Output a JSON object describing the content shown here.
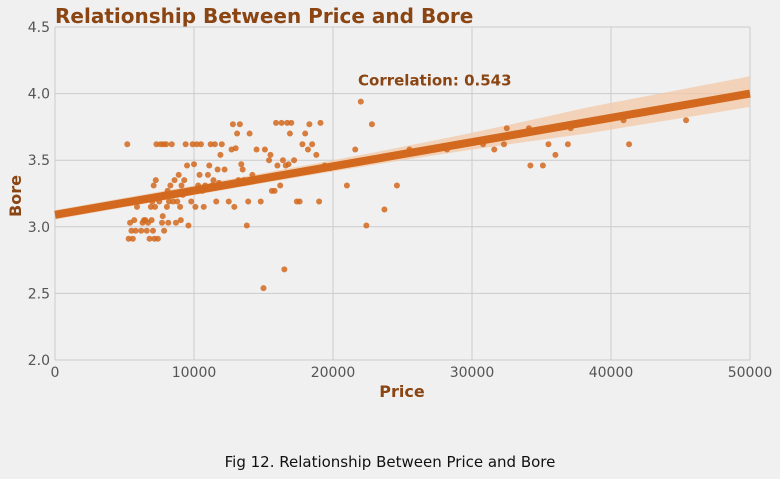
{
  "caption": "Fig 12. Relationship Between Price and Bore",
  "colors": {
    "background": "#f0f0f0",
    "grid": "#cbcbcb",
    "point": "#d2691e",
    "line": "#d2691e",
    "band": "#f3c9a8",
    "title": "#8b4513"
  },
  "chart_data": {
    "type": "scatter",
    "title": "Relationship Between Price and Bore",
    "xlabel": "Price",
    "ylabel": "Bore",
    "xlim": [
      0,
      50000
    ],
    "ylim": [
      2.0,
      4.5
    ],
    "xticks": [
      0,
      10000,
      20000,
      30000,
      40000,
      50000
    ],
    "xtick_labels": [
      "0",
      "10000",
      "20000",
      "30000",
      "40000",
      "50000"
    ],
    "yticks": [
      2.0,
      2.5,
      3.0,
      3.5,
      4.0,
      4.5
    ],
    "ytick_labels": [
      "2.0",
      "2.5",
      "3.0",
      "3.5",
      "4.0",
      "4.5"
    ],
    "grid": true,
    "annotation": {
      "text": "Correlation: 0.543",
      "x": 21800,
      "y": 4.06
    },
    "regression": {
      "x": [
        0,
        50000
      ],
      "y": [
        3.09,
        4.0
      ],
      "ci_upper": [
        3.13,
        4.13
      ],
      "ci_lower": [
        3.05,
        3.9
      ]
    },
    "points": [
      [
        5200,
        3.62
      ],
      [
        5300,
        2.91
      ],
      [
        5400,
        3.03
      ],
      [
        5500,
        2.97
      ],
      [
        5600,
        2.91
      ],
      [
        5700,
        3.05
      ],
      [
        5800,
        2.97
      ],
      [
        5900,
        3.15
      ],
      [
        6000,
        3.19
      ],
      [
        6200,
        2.97
      ],
      [
        6300,
        3.03
      ],
      [
        6400,
        3.05
      ],
      [
        6500,
        3.05
      ],
      [
        6600,
        2.97
      ],
      [
        6700,
        3.03
      ],
      [
        6800,
        2.91
      ],
      [
        6900,
        3.15
      ],
      [
        6950,
        3.05
      ],
      [
        7000,
        3.19
      ],
      [
        7050,
        2.97
      ],
      [
        7100,
        3.31
      ],
      [
        7150,
        2.91
      ],
      [
        7200,
        3.15
      ],
      [
        7250,
        3.35
      ],
      [
        7300,
        3.62
      ],
      [
        7400,
        2.91
      ],
      [
        7500,
        3.19
      ],
      [
        7600,
        3.62
      ],
      [
        7700,
        3.03
      ],
      [
        7750,
        3.08
      ],
      [
        7800,
        3.62
      ],
      [
        7850,
        2.97
      ],
      [
        7900,
        3.24
      ],
      [
        8000,
        3.62
      ],
      [
        8050,
        3.15
      ],
      [
        8100,
        3.27
      ],
      [
        8150,
        3.03
      ],
      [
        8200,
        3.19
      ],
      [
        8300,
        3.31
      ],
      [
        8400,
        3.62
      ],
      [
        8500,
        3.19
      ],
      [
        8600,
        3.35
      ],
      [
        8700,
        3.03
      ],
      [
        8800,
        3.19
      ],
      [
        8900,
        3.39
      ],
      [
        9000,
        3.15
      ],
      [
        9050,
        3.05
      ],
      [
        9100,
        3.31
      ],
      [
        9200,
        3.24
      ],
      [
        9300,
        3.35
      ],
      [
        9400,
        3.62
      ],
      [
        9500,
        3.46
      ],
      [
        9600,
        3.01
      ],
      [
        9700,
        3.27
      ],
      [
        9800,
        3.19
      ],
      [
        9900,
        3.62
      ],
      [
        10000,
        3.47
      ],
      [
        10100,
        3.15
      ],
      [
        10200,
        3.62
      ],
      [
        10300,
        3.31
      ],
      [
        10400,
        3.39
      ],
      [
        10500,
        3.62
      ],
      [
        10600,
        3.27
      ],
      [
        10700,
        3.15
      ],
      [
        10800,
        3.31
      ],
      [
        11000,
        3.39
      ],
      [
        11100,
        3.46
      ],
      [
        11200,
        3.62
      ],
      [
        11300,
        3.31
      ],
      [
        11400,
        3.35
      ],
      [
        11500,
        3.62
      ],
      [
        11600,
        3.19
      ],
      [
        11700,
        3.43
      ],
      [
        11800,
        3.33
      ],
      [
        11900,
        3.54
      ],
      [
        12000,
        3.62
      ],
      [
        12200,
        3.43
      ],
      [
        12300,
        3.31
      ],
      [
        12500,
        3.19
      ],
      [
        12700,
        3.58
      ],
      [
        12800,
        3.77
      ],
      [
        12900,
        3.15
      ],
      [
        13000,
        3.59
      ],
      [
        13100,
        3.7
      ],
      [
        13200,
        3.35
      ],
      [
        13300,
        3.77
      ],
      [
        13400,
        3.47
      ],
      [
        13500,
        3.43
      ],
      [
        13600,
        3.35
      ],
      [
        13800,
        3.01
      ],
      [
        13900,
        3.19
      ],
      [
        14000,
        3.7
      ],
      [
        14200,
        3.39
      ],
      [
        14500,
        3.58
      ],
      [
        14800,
        3.19
      ],
      [
        15000,
        2.54
      ],
      [
        15100,
        3.58
      ],
      [
        15400,
        3.5
      ],
      [
        15500,
        3.54
      ],
      [
        15600,
        3.27
      ],
      [
        15800,
        3.27
      ],
      [
        15900,
        3.78
      ],
      [
        16000,
        3.46
      ],
      [
        16200,
        3.31
      ],
      [
        16300,
        3.78
      ],
      [
        16400,
        3.5
      ],
      [
        16500,
        2.68
      ],
      [
        16600,
        3.46
      ],
      [
        16700,
        3.78
      ],
      [
        16800,
        3.47
      ],
      [
        16900,
        3.7
      ],
      [
        17000,
        3.78
      ],
      [
        17200,
        3.5
      ],
      [
        17400,
        3.19
      ],
      [
        17600,
        3.19
      ],
      [
        17800,
        3.62
      ],
      [
        18000,
        3.7
      ],
      [
        18200,
        3.58
      ],
      [
        18300,
        3.77
      ],
      [
        18500,
        3.62
      ],
      [
        18800,
        3.54
      ],
      [
        19000,
        3.19
      ],
      [
        19100,
        3.78
      ],
      [
        19400,
        3.46
      ],
      [
        19800,
        3.44
      ],
      [
        21000,
        3.31
      ],
      [
        21600,
        3.58
      ],
      [
        22000,
        3.94
      ],
      [
        22400,
        3.01
      ],
      [
        22800,
        3.77
      ],
      [
        23700,
        3.13
      ],
      [
        24600,
        3.31
      ],
      [
        25500,
        3.58
      ],
      [
        28200,
        3.58
      ],
      [
        30800,
        3.62
      ],
      [
        31600,
        3.58
      ],
      [
        32300,
        3.62
      ],
      [
        32500,
        3.74
      ],
      [
        34100,
        3.74
      ],
      [
        34200,
        3.46
      ],
      [
        35100,
        3.46
      ],
      [
        35500,
        3.62
      ],
      [
        36000,
        3.54
      ],
      [
        36900,
        3.62
      ],
      [
        37100,
        3.74
      ],
      [
        40900,
        3.8
      ],
      [
        41300,
        3.62
      ],
      [
        45400,
        3.8
      ]
    ]
  }
}
